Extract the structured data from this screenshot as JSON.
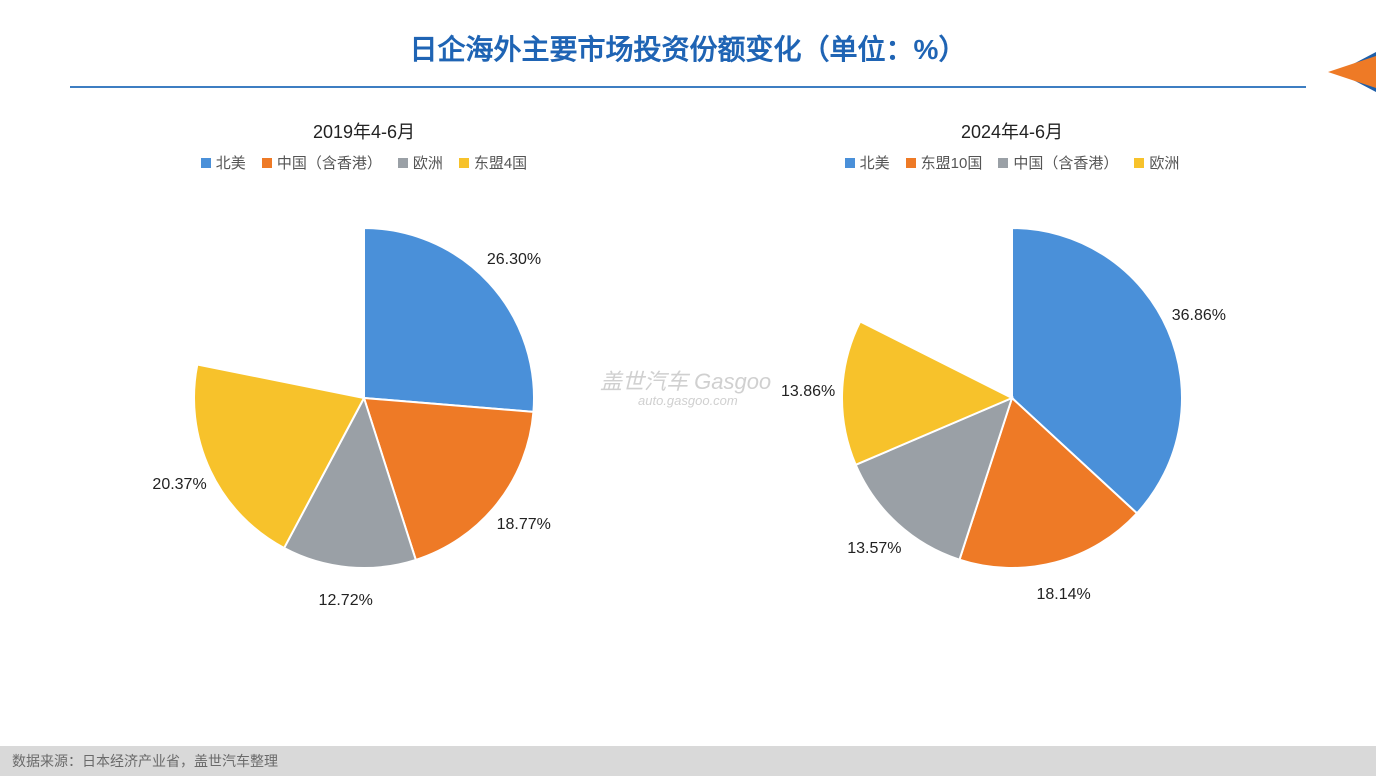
{
  "title": {
    "text": "日企海外主要市场投资份额变化（单位：%）",
    "color": "#1f64b4",
    "underline_color": "#3d7ec2"
  },
  "corner": {
    "color_front": "#ee7a26",
    "color_back": "#1f5fa8"
  },
  "watermark": {
    "main": "盖世汽车 Gasgoo",
    "sub": "auto.gasgoo.com"
  },
  "charts": [
    {
      "subtitle": "2019年4-6月",
      "pie_radius": 170,
      "label_offset": 1.2,
      "start_angle": -90,
      "label_fontsize": 16,
      "legend_order": [
        "北美",
        "中国（含香港）",
        "欧洲",
        "东盟4国"
      ],
      "slices": [
        {
          "name": "北美",
          "value": 26.3,
          "color": "#4a90d9",
          "label": "26.30%"
        },
        {
          "name": "中国（含香港）",
          "value": 18.77,
          "color": "#ee7a26",
          "label": "18.77%"
        },
        {
          "name": "欧洲",
          "value": 12.72,
          "color": "#9aa0a6",
          "label": "12.72%"
        },
        {
          "name": "东盟4国",
          "value": 20.37,
          "color": "#f7c22b",
          "label": "20.37%"
        },
        {
          "name": "_rest",
          "value": 21.84,
          "color": "#ffffff",
          "label": ""
        }
      ]
    },
    {
      "subtitle": "2024年4-6月",
      "pie_radius": 170,
      "label_offset": 1.2,
      "start_angle": -90,
      "label_fontsize": 16,
      "legend_order": [
        "北美",
        "东盟10国",
        "中国（含香港）",
        "欧洲"
      ],
      "slices": [
        {
          "name": "北美",
          "value": 36.86,
          "color": "#4a90d9",
          "label": "36.86%"
        },
        {
          "name": "东盟10国",
          "value": 18.14,
          "color": "#ee7a26",
          "label": "18.14%"
        },
        {
          "name": "中国（含香港）",
          "value": 13.57,
          "color": "#9aa0a6",
          "label": "13.57%"
        },
        {
          "name": "欧洲",
          "value": 13.86,
          "color": "#f7c22b",
          "label": "13.86%"
        },
        {
          "name": "_rest",
          "value": 17.57,
          "color": "#ffffff",
          "label": ""
        }
      ]
    }
  ],
  "footer": {
    "text": "数据来源：日本经济产业省，盖世汽车整理",
    "bg": "#d9d9d9",
    "color": "#6a6a6a"
  }
}
